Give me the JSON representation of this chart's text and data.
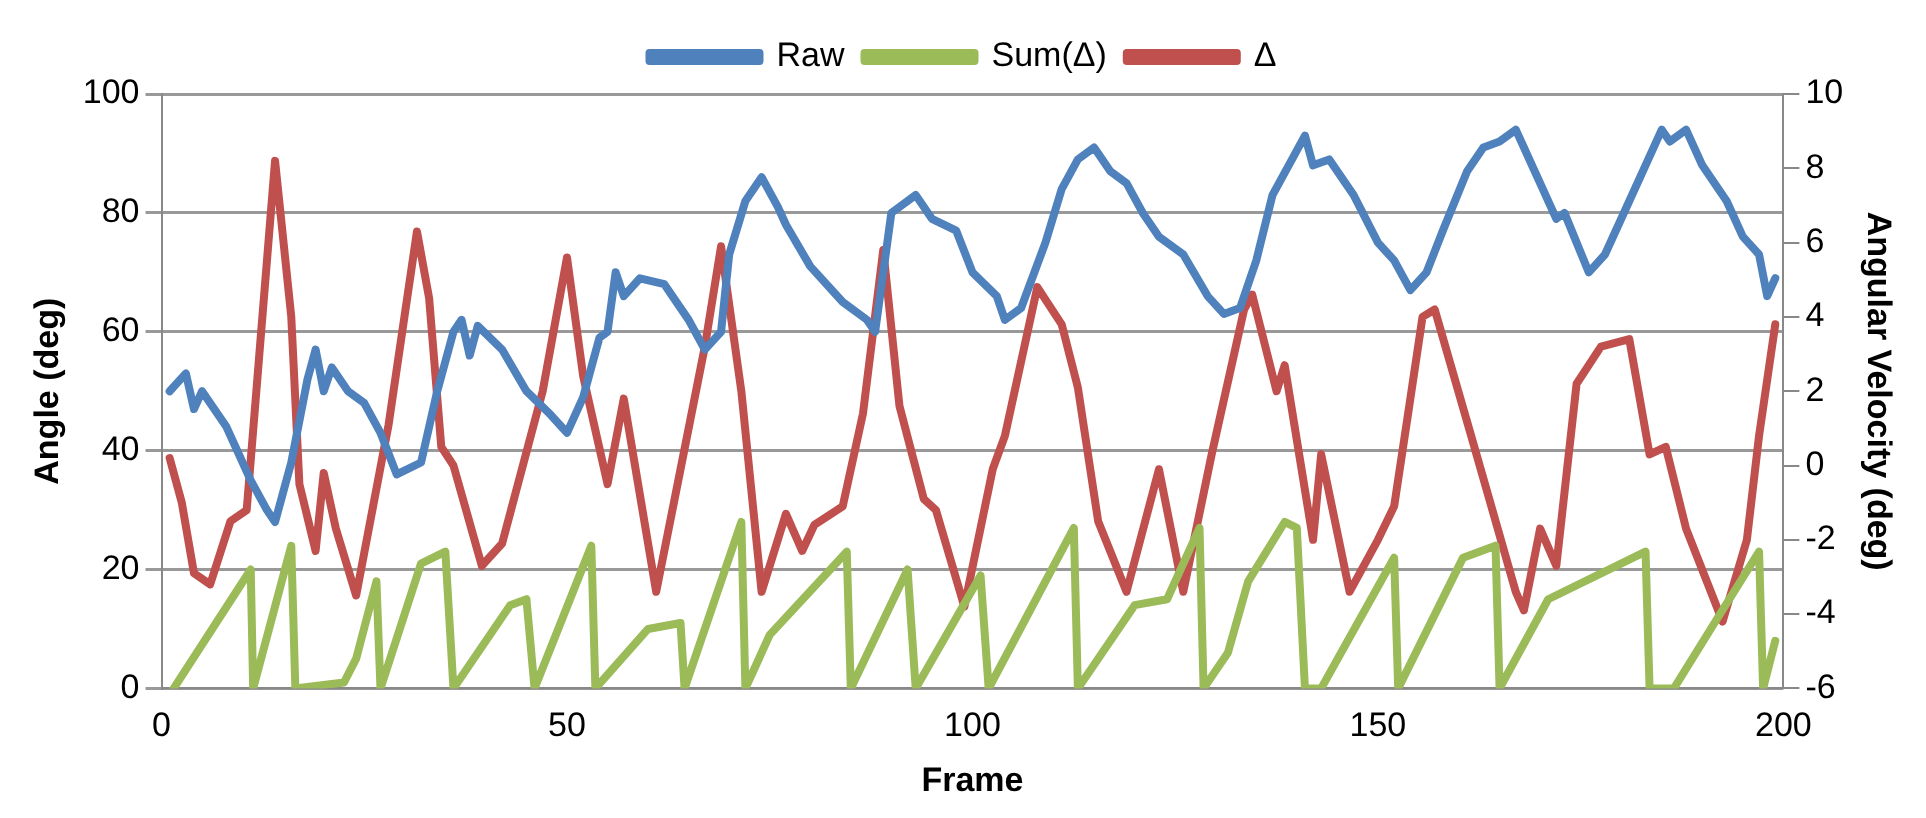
{
  "chart_data": {
    "type": "line",
    "xlabel": "Frame",
    "ylabel": "Angle (deg)",
    "y2label": "Angular Velocity (deg)",
    "xlim": [
      0,
      200
    ],
    "xticks": [
      0,
      50,
      100,
      150,
      200
    ],
    "ylim": [
      0,
      100
    ],
    "yticks": [
      0,
      20,
      40,
      60,
      80,
      100
    ],
    "y2lim": [
      -6,
      10
    ],
    "y2ticks": [
      -6,
      -4,
      -2,
      0,
      2,
      4,
      6,
      8,
      10
    ],
    "grid": "y",
    "legend": "top",
    "marker": "none",
    "line_style": "solid",
    "series": [
      {
        "name": "Raw",
        "color": "#4f81bd",
        "x": [
          1,
          3,
          4,
          5,
          8,
          11,
          13,
          14,
          16,
          18,
          19,
          20,
          21,
          23,
          25,
          27,
          29,
          32,
          34,
          36,
          37,
          38,
          39,
          42,
          45,
          48,
          50,
          52,
          54,
          55,
          56,
          57,
          59,
          62,
          65,
          67,
          69,
          70,
          72,
          74,
          76,
          77,
          80,
          84,
          87,
          88,
          89,
          90,
          92,
          93,
          95,
          98,
          100,
          103,
          104,
          106,
          109,
          111,
          113,
          115,
          117,
          119,
          121,
          123,
          126,
          129,
          131,
          133,
          135,
          137,
          139,
          141,
          142,
          144,
          147,
          150,
          152,
          154,
          156,
          158,
          161,
          163,
          165,
          167,
          170,
          172,
          173,
          176,
          178,
          181,
          183,
          185,
          186,
          188,
          190,
          193,
          195,
          197,
          198,
          199
        ],
        "values": [
          50,
          53,
          47,
          50,
          44,
          35,
          30,
          28,
          38,
          52,
          57,
          50,
          54,
          50,
          48,
          43,
          36,
          38,
          50,
          60,
          62,
          56,
          61,
          57,
          50,
          46,
          43,
          49,
          59,
          60,
          70,
          66,
          69,
          68,
          62,
          57,
          60,
          73,
          82,
          86,
          81,
          78,
          71,
          65,
          62,
          60,
          70,
          80,
          82,
          83,
          79,
          77,
          70,
          66,
          62,
          64,
          75,
          84,
          89,
          91,
          87,
          85,
          80,
          76,
          73,
          66,
          63,
          64,
          72,
          83,
          88,
          93,
          88,
          89,
          83,
          75,
          72,
          67,
          70,
          77,
          87,
          91,
          92,
          94,
          85,
          79,
          80,
          70,
          73,
          82,
          88,
          94,
          92,
          94,
          88,
          82,
          76,
          73,
          66,
          69
        ]
      },
      {
        "name": "Sum(Δ)",
        "color": "#9bbb59",
        "x": [
          1.5,
          11,
          11.3,
          16,
          16.5,
          22.5,
          24,
          26.5,
          27,
          32,
          35,
          36,
          43,
          45,
          46,
          53,
          53.5,
          60,
          64,
          64.5,
          71.5,
          72,
          75,
          84.5,
          85,
          92,
          93,
          101,
          102,
          112.5,
          113,
          120,
          124,
          128,
          128.5,
          131.5,
          134,
          138.5,
          140,
          141,
          143,
          152,
          152.5,
          160.5,
          164.5,
          165,
          171,
          183,
          183.5,
          186.5,
          191.5,
          197,
          197.5,
          199
        ],
        "values": [
          0,
          20,
          0,
          24,
          0,
          1,
          5,
          18,
          0,
          21,
          23,
          0,
          14,
          15,
          0,
          24,
          0,
          10,
          11,
          0,
          28,
          0,
          9,
          23,
          0,
          20,
          0,
          19,
          0,
          27,
          0,
          14,
          15,
          27,
          0,
          6,
          18,
          28,
          27,
          0,
          0,
          22,
          0,
          22,
          24,
          0,
          15,
          23,
          0,
          0,
          11,
          23,
          0,
          8
        ]
      },
      {
        "name": "Δ",
        "color": "#c0504d",
        "axis": "y2",
        "x": [
          1,
          2.5,
          4,
          6,
          8.5,
          10.5,
          14,
          16,
          17,
          19,
          20,
          21.5,
          24,
          28,
          31.5,
          33,
          34.5,
          36,
          39.5,
          42,
          47,
          50,
          52,
          55,
          57,
          61,
          67,
          69,
          71.5,
          74,
          77,
          79,
          80.5,
          84,
          86.5,
          89,
          91,
          94,
          95.5,
          99,
          102.5,
          104,
          108,
          111,
          113,
          115.5,
          119,
          123,
          126,
          129.5,
          133.5,
          134.5,
          137.5,
          138.5,
          142,
          143,
          146.5,
          150,
          152,
          154,
          155.5,
          157,
          161.5,
          167,
          168,
          170,
          172,
          174.5,
          177.5,
          181,
          183.5,
          185.5,
          188,
          192.5,
          195.5,
          197,
          199
        ],
        "values": [
          0.2,
          -1,
          -2.9,
          -3.2,
          -1.5,
          -1.2,
          8.2,
          4,
          -0.5,
          -2.3,
          -0.2,
          -1.7,
          -3.5,
          1.1,
          6.3,
          4.5,
          0.5,
          0,
          -2.7,
          -2.1,
          2,
          5.6,
          2.4,
          -0.5,
          1.8,
          -3.4,
          3.2,
          5.9,
          2,
          -3.4,
          -1.3,
          -2.3,
          -1.6,
          -1.1,
          1.4,
          5.8,
          1.6,
          -0.9,
          -1.2,
          -3.8,
          -0.1,
          0.8,
          4.8,
          3.8,
          2.1,
          -1.5,
          -3.4,
          -0.1,
          -3.4,
          0.3,
          4.2,
          4.6,
          2,
          2.7,
          -2,
          0.3,
          -3.4,
          -2,
          -1.1,
          1.8,
          4,
          4.2,
          0.8,
          -3.4,
          -3.9,
          -1.7,
          -2.7,
          2.2,
          3.2,
          3.4,
          0.3,
          0.5,
          -1.7,
          -4.2,
          -2,
          0.8,
          3.8
        ]
      }
    ]
  }
}
